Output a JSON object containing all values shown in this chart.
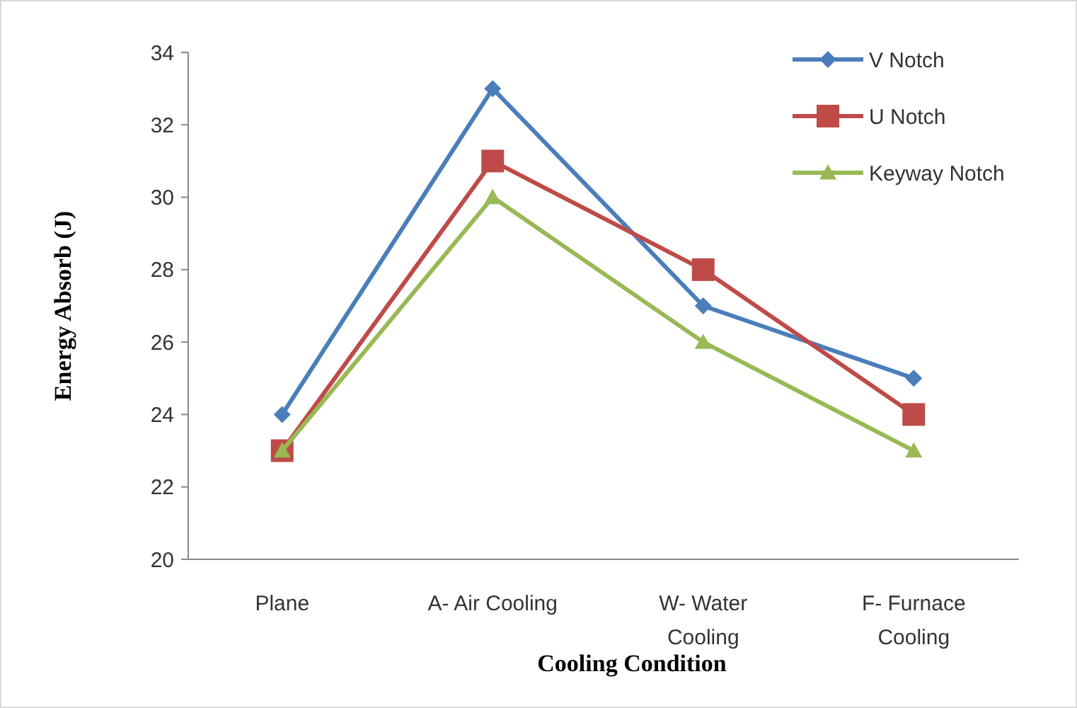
{
  "chart_data": {
    "type": "line",
    "xlabel": "Cooling Condition",
    "ylabel": "Energy Absorb (J)",
    "categories": [
      "Plane",
      "A- Air Cooling",
      "W- Water Cooling",
      "F- Furnace Cooling"
    ],
    "ylim": [
      20,
      34
    ],
    "yticks": [
      20,
      22,
      24,
      26,
      28,
      30,
      32,
      34
    ],
    "grid": false,
    "legend": "top right",
    "series": [
      {
        "name": "V Notch",
        "color": "#4a7ebb",
        "marker": "diamond",
        "values": [
          24,
          33,
          27,
          25
        ]
      },
      {
        "name": "U Notch",
        "color": "#be4b48",
        "marker": "square",
        "values": [
          23,
          31,
          28,
          24
        ]
      },
      {
        "name": "Keyway Notch",
        "color": "#98b954",
        "marker": "triangle",
        "values": [
          23,
          30,
          26,
          23
        ]
      }
    ]
  }
}
